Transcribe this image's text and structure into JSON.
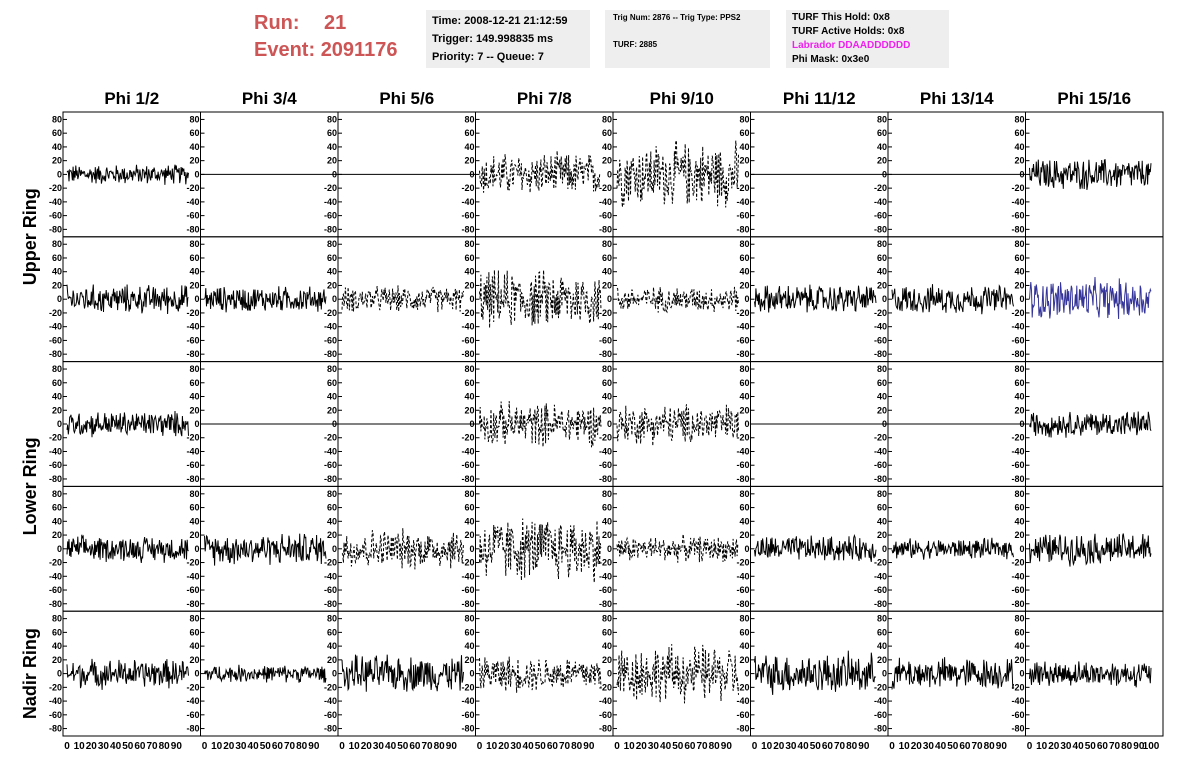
{
  "header": {
    "run_label": "Run:",
    "run_value": "21",
    "event_label": "Event:",
    "event_value": "2091176",
    "run_color": "#cd5555"
  },
  "info_box_1": {
    "time": "Time: 2008-12-21 21:12:59",
    "trigger": "Trigger: 149.998835 ms",
    "priority": "Priority: 7 -- Queue: 7"
  },
  "info_box_2": {
    "trig": "Trig Num: 2876 -- Trig Type: PPS2",
    "turf": "TURF: 2885"
  },
  "info_box_3": {
    "this_hold": "TURF This Hold: 0x8",
    "active_holds": "TURF Active Holds: 0x8",
    "labrador": "Labrador DDAADDDDDD",
    "phi_mask": "Phi Mask: 0x3e0",
    "labrador_color": "#ee22ee"
  },
  "chart_data": {
    "type": "line",
    "column_titles": [
      "Phi 1/2",
      "Phi 3/4",
      "Phi 5/6",
      "Phi 7/8",
      "Phi 9/10",
      "Phi 11/12",
      "Phi 13/14",
      "Phi 15/16"
    ],
    "ring_labels": [
      "Upper Ring",
      "Lower Ring",
      "Nadir Ring"
    ],
    "ylim": [
      -85,
      85
    ],
    "xlim": [
      0,
      100
    ],
    "y_ticks": [
      80,
      60,
      40,
      20,
      0,
      -20,
      -40,
      -60,
      -80
    ],
    "x_tick_labels": [
      "0",
      "10",
      "20",
      "30",
      "40",
      "50",
      "60",
      "70",
      "80",
      "90",
      "100"
    ],
    "grid": false,
    "highlight_color": "#333399",
    "rows": [
      [
        {
          "style": "solid",
          "amp": 14
        },
        {
          "style": "flat",
          "amp": 0
        },
        {
          "style": "flat",
          "amp": 0
        },
        {
          "style": "dashed",
          "amp": 30
        },
        {
          "style": "dashed",
          "amp": 45
        },
        {
          "style": "flat",
          "amp": 0
        },
        {
          "style": "flat",
          "amp": 0
        },
        {
          "style": "solid",
          "amp": 22
        }
      ],
      [
        {
          "style": "solid",
          "amp": 20
        },
        {
          "style": "solid",
          "amp": 18
        },
        {
          "style": "dashed",
          "amp": 18
        },
        {
          "style": "dashed",
          "amp": 40
        },
        {
          "style": "dashed",
          "amp": 18
        },
        {
          "style": "solid",
          "amp": 20
        },
        {
          "style": "solid",
          "amp": 20
        },
        {
          "style": "solid",
          "amp": 28,
          "highlight": true
        }
      ],
      [
        {
          "style": "solid",
          "amp": 18
        },
        {
          "style": "flat",
          "amp": 0
        },
        {
          "style": "flat",
          "amp": 0
        },
        {
          "style": "dashed",
          "amp": 30
        },
        {
          "style": "dashed",
          "amp": 28
        },
        {
          "style": "flat",
          "amp": 0
        },
        {
          "style": "flat",
          "amp": 0
        },
        {
          "style": "solid",
          "amp": 18
        }
      ],
      [
        {
          "style": "solid",
          "amp": 18
        },
        {
          "style": "solid",
          "amp": 22
        },
        {
          "style": "dashed",
          "amp": 28
        },
        {
          "style": "dashed",
          "amp": 45
        },
        {
          "style": "dashed",
          "amp": 18
        },
        {
          "style": "solid",
          "amp": 18
        },
        {
          "style": "solid",
          "amp": 14
        },
        {
          "style": "solid",
          "amp": 22
        }
      ],
      [
        {
          "style": "solid",
          "amp": 20
        },
        {
          "style": "solid",
          "amp": 12
        },
        {
          "style": "solid",
          "amp": 25
        },
        {
          "style": "dashed",
          "amp": 25
        },
        {
          "style": "dashed",
          "amp": 40
        },
        {
          "style": "solid",
          "amp": 28
        },
        {
          "style": "solid",
          "amp": 22
        },
        {
          "style": "solid",
          "amp": 18
        }
      ]
    ]
  }
}
